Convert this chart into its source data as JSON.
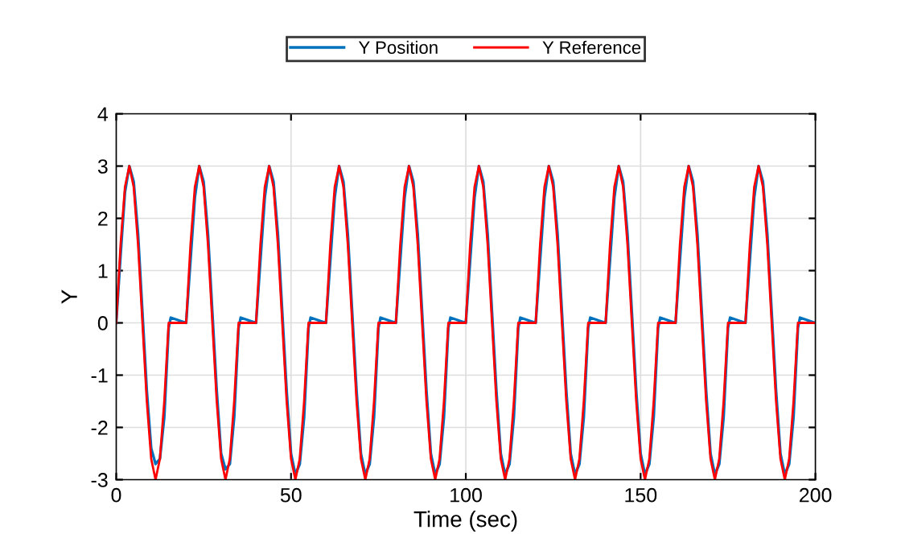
{
  "chart_data": {
    "type": "line",
    "xlabel": "Time (sec)",
    "ylabel": "Y",
    "xlim": [
      0,
      200
    ],
    "ylim": [
      -3,
      4
    ],
    "xticks": [
      0,
      50,
      100,
      150,
      200
    ],
    "yticks": [
      -3,
      -2,
      -1,
      0,
      1,
      2,
      3,
      4
    ],
    "grid": true,
    "legend": "top",
    "line_style": "solid",
    "marker": "none",
    "series": [
      {
        "name": "Y Position",
        "color": "#0072bd",
        "x": [
          0,
          1.25,
          2.5,
          3.75,
          5,
          6.25,
          7.5,
          8.75,
          10,
          11.25,
          12.5,
          13.75,
          15,
          15.6,
          20,
          21.25,
          22.5,
          23.75,
          25,
          26.25,
          27.5,
          28.75,
          30,
          31.25,
          32.5,
          33.75,
          35,
          35.6,
          40,
          41.25,
          42.5,
          43.75,
          45,
          46.25,
          47.5,
          48.75,
          50,
          51.25,
          52.5,
          53.75,
          55,
          55.6,
          60,
          61.25,
          62.5,
          63.75,
          65,
          66.25,
          67.5,
          68.75,
          70,
          71.25,
          72.5,
          73.75,
          75,
          75.6,
          80,
          81.25,
          82.5,
          83.75,
          85,
          86.25,
          87.5,
          88.75,
          90,
          91.25,
          92.5,
          93.75,
          95,
          95.6,
          100,
          101.25,
          102.5,
          103.75,
          105,
          106.25,
          107.5,
          108.75,
          110,
          111.25,
          112.5,
          113.75,
          115,
          115.6,
          120,
          121.25,
          122.5,
          123.75,
          125,
          126.25,
          127.5,
          128.75,
          130,
          131.25,
          132.5,
          133.75,
          135,
          135.6,
          140,
          141.25,
          142.5,
          143.75,
          145,
          146.25,
          147.5,
          148.75,
          150,
          151.25,
          152.5,
          153.75,
          155,
          155.6,
          160,
          161.25,
          162.5,
          163.75,
          165,
          166.25,
          167.5,
          168.75,
          170,
          171.25,
          172.5,
          173.75,
          175,
          175.6,
          180,
          181.25,
          182.5,
          183.75,
          185,
          186.25,
          187.5,
          188.75,
          190,
          191.25,
          192.5,
          193.75,
          195,
          195.6,
          200
        ],
        "values": [
          0,
          1.3,
          2.5,
          3,
          2.7,
          1.7,
          0.2,
          -1.3,
          -2.4,
          -2.7,
          -2.6,
          -1.8,
          -0.1,
          0.1,
          0,
          1.2,
          2.4,
          3,
          2.7,
          1.7,
          0.2,
          -1.3,
          -2.5,
          -2.8,
          -2.7,
          -1.8,
          -0.1,
          0.1,
          0,
          1.2,
          2.4,
          3,
          2.7,
          1.7,
          0.2,
          -1.3,
          -2.5,
          -2.9,
          -2.7,
          -1.8,
          -0.1,
          0.1,
          0,
          1.2,
          2.4,
          3,
          2.7,
          1.7,
          0.2,
          -1.3,
          -2.5,
          -2.9,
          -2.7,
          -1.8,
          -0.1,
          0.1,
          0,
          1.2,
          2.4,
          3,
          2.7,
          1.7,
          0.2,
          -1.3,
          -2.5,
          -2.9,
          -2.7,
          -1.8,
          -0.1,
          0.1,
          0,
          1.2,
          2.4,
          3,
          2.7,
          1.7,
          0.2,
          -1.3,
          -2.5,
          -2.9,
          -2.7,
          -1.8,
          -0.1,
          0.1,
          0,
          1.2,
          2.4,
          3,
          2.7,
          1.7,
          0.2,
          -1.3,
          -2.5,
          -2.9,
          -2.7,
          -1.8,
          -0.1,
          0.1,
          0,
          1.2,
          2.4,
          3,
          2.7,
          1.7,
          0.2,
          -1.3,
          -2.5,
          -2.9,
          -2.7,
          -1.8,
          -0.1,
          0.1,
          0,
          1.2,
          2.4,
          3,
          2.7,
          1.7,
          0.2,
          -1.3,
          -2.5,
          -2.9,
          -2.7,
          -1.8,
          -0.1,
          0.1,
          0,
          1.2,
          2.4,
          3,
          2.7,
          1.7,
          0.2,
          -1.3,
          -2.5,
          -2.9,
          -2.7,
          -1.8,
          -0.1,
          0.1,
          0
        ]
      },
      {
        "name": "Y Reference",
        "color": "#ff0000",
        "x": [
          0,
          1.25,
          2.5,
          3.75,
          5,
          6.25,
          7.5,
          8.75,
          10,
          11.25,
          12.5,
          13.75,
          15,
          20,
          21.25,
          22.5,
          23.75,
          25,
          26.25,
          27.5,
          28.75,
          30,
          31.25,
          32.5,
          33.75,
          35,
          40,
          41.25,
          42.5,
          43.75,
          45,
          46.25,
          47.5,
          48.75,
          50,
          51.25,
          52.5,
          53.75,
          55,
          60,
          61.25,
          62.5,
          63.75,
          65,
          66.25,
          67.5,
          68.75,
          70,
          71.25,
          72.5,
          73.75,
          75,
          80,
          81.25,
          82.5,
          83.75,
          85,
          86.25,
          87.5,
          88.75,
          90,
          91.25,
          92.5,
          93.75,
          95,
          100,
          101.25,
          102.5,
          103.75,
          105,
          106.25,
          107.5,
          108.75,
          110,
          111.25,
          112.5,
          113.75,
          115,
          120,
          121.25,
          122.5,
          123.75,
          125,
          126.25,
          127.5,
          128.75,
          130,
          131.25,
          132.5,
          133.75,
          135,
          140,
          141.25,
          142.5,
          143.75,
          145,
          146.25,
          147.5,
          148.75,
          150,
          151.25,
          152.5,
          153.75,
          155,
          160,
          161.25,
          162.5,
          163.75,
          165,
          166.25,
          167.5,
          168.75,
          170,
          171.25,
          172.5,
          173.75,
          175,
          180,
          181.25,
          182.5,
          183.75,
          185,
          186.25,
          187.5,
          188.75,
          190,
          191.25,
          192.5,
          193.75,
          195,
          200
        ],
        "values": [
          0,
          1.5,
          2.6,
          3,
          2.6,
          1.5,
          0,
          -1.5,
          -2.6,
          -3,
          -2.6,
          -1.5,
          0,
          0,
          1.5,
          2.6,
          3,
          2.6,
          1.5,
          0,
          -1.5,
          -2.6,
          -3,
          -2.6,
          -1.5,
          0,
          0,
          1.5,
          2.6,
          3,
          2.6,
          1.5,
          0,
          -1.5,
          -2.6,
          -3,
          -2.6,
          -1.5,
          0,
          0,
          1.5,
          2.6,
          3,
          2.6,
          1.5,
          0,
          -1.5,
          -2.6,
          -3,
          -2.6,
          -1.5,
          0,
          0,
          1.5,
          2.6,
          3,
          2.6,
          1.5,
          0,
          -1.5,
          -2.6,
          -3,
          -2.6,
          -1.5,
          0,
          0,
          1.5,
          2.6,
          3,
          2.6,
          1.5,
          0,
          -1.5,
          -2.6,
          -3,
          -2.6,
          -1.5,
          0,
          0,
          1.5,
          2.6,
          3,
          2.6,
          1.5,
          0,
          -1.5,
          -2.6,
          -3,
          -2.6,
          -1.5,
          0,
          0,
          1.5,
          2.6,
          3,
          2.6,
          1.5,
          0,
          -1.5,
          -2.6,
          -3,
          -2.6,
          -1.5,
          0,
          0,
          1.5,
          2.6,
          3,
          2.6,
          1.5,
          0,
          -1.5,
          -2.6,
          -3,
          -2.6,
          -1.5,
          0,
          0,
          1.5,
          2.6,
          3,
          2.6,
          1.5,
          0,
          -1.5,
          -2.6,
          -3,
          -2.6,
          -1.5,
          0,
          0
        ]
      }
    ]
  }
}
